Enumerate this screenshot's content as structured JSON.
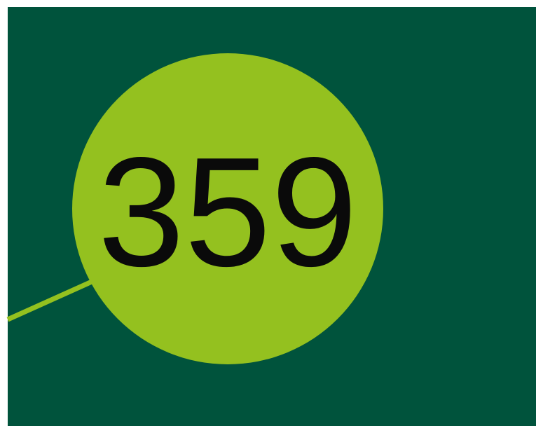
{
  "badge": {
    "label": "359"
  }
}
